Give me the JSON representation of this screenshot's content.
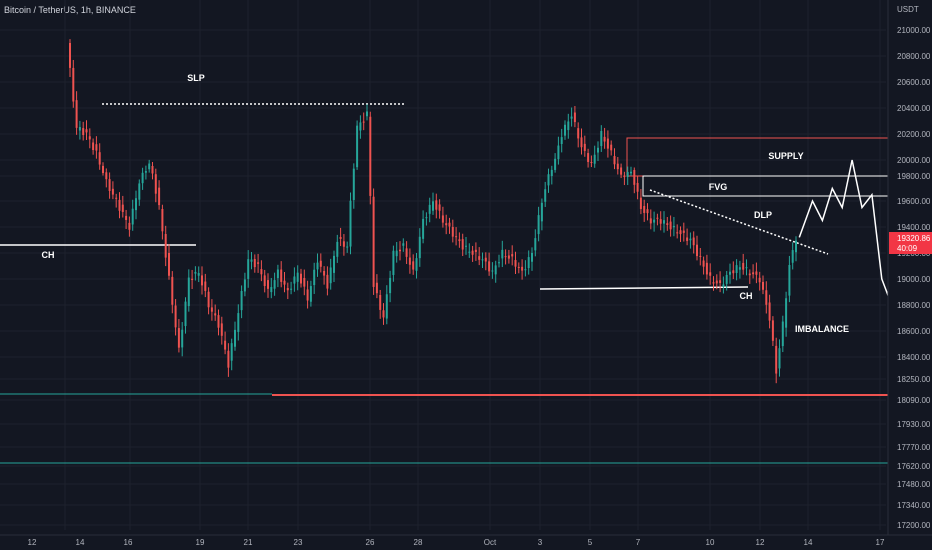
{
  "header": {
    "symbol_title": "Bitcoin / TetherUS, 1h, BINANCE"
  },
  "colors": {
    "background": "#131722",
    "grid": "#1e222d",
    "axis_text": "#b2b5be",
    "candle_up": "#26a69a",
    "candle_down": "#ef5350",
    "supply_zone": "#ef5350",
    "support_red": "#ef5350",
    "green_line": "#26a69a",
    "white": "#ffffff",
    "price_tag": "#f23645"
  },
  "chart_data": {
    "type": "candlestick",
    "title": "Bitcoin / TetherUS, 1h, BINANCE",
    "y_axis": {
      "unit_label": "USDT",
      "ticks": [
        21000,
        20800,
        20600,
        20400,
        20200,
        20000,
        19800,
        19600,
        19400,
        19200,
        19000,
        18800,
        18600,
        18400,
        18250,
        18090,
        17930,
        17770,
        17620,
        17480,
        17340,
        17200
      ],
      "tick_labels": [
        "21000.00",
        "20800.00",
        "20600.00",
        "20400.00",
        "20200.00",
        "20000.00",
        "19800.00",
        "19600.00",
        "19400.00",
        "19200.00",
        "19000.00",
        "18800.00",
        "18600.00",
        "18400.00",
        "18250.00",
        "18090.00",
        "17930.00",
        "17770.00",
        "17620.00",
        "17480.00",
        "17340.00",
        "17200.00"
      ]
    },
    "x_axis": {
      "tick_labels": [
        "12",
        "14",
        "16",
        "19",
        "21",
        "23",
        "26",
        "28",
        "Oct",
        "3",
        "5",
        "7",
        "10",
        "12",
        "14",
        "17"
      ]
    },
    "current_price": {
      "price": "19320.86",
      "countdown": "40:09"
    },
    "price_path": [
      [
        0,
        20900
      ],
      [
        3,
        20250
      ],
      [
        6,
        20200
      ],
      [
        9,
        20050
      ],
      [
        12,
        19750
      ],
      [
        15,
        19600
      ],
      [
        19,
        19400
      ],
      [
        22,
        19750
      ],
      [
        25,
        19950
      ],
      [
        28,
        19550
      ],
      [
        31,
        19000
      ],
      [
        34,
        18450
      ],
      [
        37,
        19000
      ],
      [
        40,
        19050
      ],
      [
        43,
        18800
      ],
      [
        46,
        18650
      ],
      [
        49,
        18350
      ],
      [
        52,
        18750
      ],
      [
        55,
        19150
      ],
      [
        58,
        19100
      ],
      [
        61,
        18900
      ],
      [
        64,
        19050
      ],
      [
        67,
        18900
      ],
      [
        70,
        19050
      ],
      [
        73,
        18850
      ],
      [
        76,
        19150
      ],
      [
        79,
        18950
      ],
      [
        82,
        19300
      ],
      [
        85,
        19250
      ],
      [
        88,
        20250
      ],
      [
        91,
        20350
      ],
      [
        93,
        18950
      ],
      [
        96,
        18700
      ],
      [
        99,
        19200
      ],
      [
        102,
        19250
      ],
      [
        105,
        19050
      ],
      [
        108,
        19450
      ],
      [
        111,
        19600
      ],
      [
        114,
        19450
      ],
      [
        117,
        19350
      ],
      [
        120,
        19250
      ],
      [
        123,
        19200
      ],
      [
        126,
        19150
      ],
      [
        129,
        19050
      ],
      [
        132,
        19200
      ],
      [
        135,
        19150
      ],
      [
        138,
        19050
      ],
      [
        141,
        19200
      ],
      [
        144,
        19600
      ],
      [
        147,
        19900
      ],
      [
        150,
        20200
      ],
      [
        153,
        20350
      ],
      [
        156,
        20100
      ],
      [
        159,
        19950
      ],
      [
        162,
        20200
      ],
      [
        165,
        20050
      ],
      [
        168,
        19800
      ],
      [
        171,
        19850
      ],
      [
        174,
        19550
      ],
      [
        177,
        19450
      ],
      [
        180,
        19450
      ],
      [
        183,
        19400
      ],
      [
        186,
        19350
      ],
      [
        189,
        19300
      ],
      [
        192,
        19150
      ],
      [
        195,
        19000
      ],
      [
        198,
        18950
      ],
      [
        201,
        19050
      ],
      [
        204,
        19100
      ],
      [
        207,
        19050
      ],
      [
        210,
        19000
      ],
      [
        213,
        18700
      ],
      [
        215,
        18300
      ],
      [
        217,
        18650
      ],
      [
        219,
        19100
      ],
      [
        221,
        19320
      ]
    ],
    "projection_path": [
      [
        221,
        19320
      ],
      [
        225,
        19600
      ],
      [
        228,
        19450
      ],
      [
        231,
        19700
      ],
      [
        234,
        19550
      ],
      [
        237,
        20000
      ],
      [
        240,
        19550
      ],
      [
        243,
        19650
      ],
      [
        246,
        19000
      ],
      [
        249,
        18800
      ],
      [
        252,
        19100
      ],
      [
        255,
        18500
      ]
    ],
    "zones": [
      {
        "label": "SUPPLY",
        "top": 20100,
        "bottom": 19800
      },
      {
        "label": "FVG",
        "top": 19800,
        "bottom": 19650
      }
    ],
    "lines": [
      {
        "label": "SLP",
        "style": "dotted",
        "price": 20400
      },
      {
        "label": "CH",
        "style": "solid",
        "price": 19250
      },
      {
        "label": "CH",
        "style": "solid",
        "price": 18930
      },
      {
        "label": "",
        "style": "solid-red",
        "price": 18090
      },
      {
        "label": "",
        "style": "solid-green",
        "price": 18090
      },
      {
        "label": "",
        "style": "solid-green",
        "price": 17630
      }
    ],
    "annotations": [
      "SLP",
      "CH",
      "SUPPLY",
      "FVG",
      "DLP",
      "CH",
      "IMBALANCE"
    ]
  }
}
